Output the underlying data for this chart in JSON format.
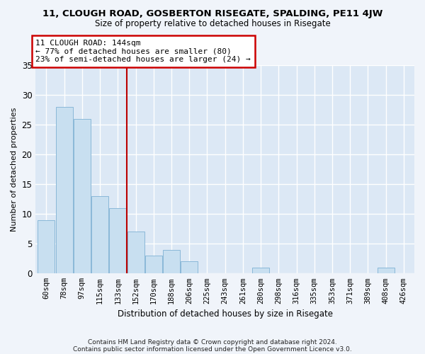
{
  "title1": "11, CLOUGH ROAD, GOSBERTON RISEGATE, SPALDING, PE11 4JW",
  "title2": "Size of property relative to detached houses in Risegate",
  "xlabel": "Distribution of detached houses by size in Risegate",
  "ylabel": "Number of detached properties",
  "categories": [
    "60sqm",
    "78sqm",
    "97sqm",
    "115sqm",
    "133sqm",
    "152sqm",
    "170sqm",
    "188sqm",
    "206sqm",
    "225sqm",
    "243sqm",
    "261sqm",
    "280sqm",
    "298sqm",
    "316sqm",
    "335sqm",
    "353sqm",
    "371sqm",
    "389sqm",
    "408sqm",
    "426sqm"
  ],
  "values": [
    9,
    28,
    26,
    13,
    11,
    7,
    3,
    4,
    2,
    0,
    0,
    0,
    1,
    0,
    0,
    0,
    0,
    0,
    0,
    1,
    0
  ],
  "bar_color": "#c8dff0",
  "bar_edgecolor": "#8ab8d8",
  "vline_x": 4.5,
  "vline_color": "#bb0000",
  "annotation_line1": "11 CLOUGH ROAD: 144sqm",
  "annotation_line2": "← 77% of detached houses are smaller (80)",
  "annotation_line3": "23% of semi-detached houses are larger (24) →",
  "annotation_box_color": "#cc0000",
  "ylim": [
    0,
    35
  ],
  "yticks": [
    0,
    5,
    10,
    15,
    20,
    25,
    30,
    35
  ],
  "footnote1": "Contains HM Land Registry data © Crown copyright and database right 2024.",
  "footnote2": "Contains public sector information licensed under the Open Government Licence v3.0.",
  "bg_color": "#dce8f5",
  "fig_bg_color": "#f0f4fa"
}
